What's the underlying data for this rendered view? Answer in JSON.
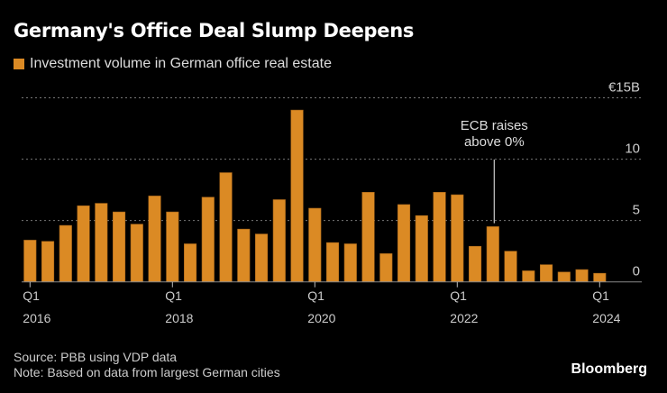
{
  "title": "Germany's Office Deal Slump Deepens",
  "legend": "Investment volume in German office real estate",
  "source": "Source: PBB using VDP data",
  "note": "Note: Based on data from largest German cities",
  "brand": "Bloomberg",
  "chart_data": {
    "type": "bar",
    "title": "Germany's Office Deal Slump Deepens",
    "series": [
      {
        "name": "Investment volume in German office real estate",
        "color": "#db8a24",
        "values": [
          3.4,
          3.3,
          4.6,
          6.2,
          6.4,
          5.7,
          4.7,
          7.0,
          5.7,
          3.1,
          6.9,
          8.9,
          4.3,
          3.9,
          6.7,
          14.0,
          6.0,
          3.2,
          3.1,
          7.3,
          2.3,
          6.3,
          5.4,
          7.3,
          7.1,
          2.9,
          4.5,
          2.5,
          0.9,
          1.4,
          0.8,
          1.0,
          0.7
        ]
      }
    ],
    "categories": [
      "Q1 2016",
      "Q2 2016",
      "Q3 2016",
      "Q4 2016",
      "Q1 2017",
      "Q2 2017",
      "Q3 2017",
      "Q4 2017",
      "Q1 2018",
      "Q2 2018",
      "Q3 2018",
      "Q4 2018",
      "Q1 2019",
      "Q2 2019",
      "Q3 2019",
      "Q4 2019",
      "Q1 2020",
      "Q2 2020",
      "Q3 2020",
      "Q4 2020",
      "Q1 2021",
      "Q2 2021",
      "Q3 2021",
      "Q4 2021",
      "Q1 2022",
      "Q2 2022",
      "Q3 2022",
      "Q4 2022",
      "Q1 2023",
      "Q2 2023",
      "Q3 2023",
      "Q4 2023",
      "Q1 2024"
    ],
    "x_ticks": [
      {
        "index": 0,
        "q": "Q1",
        "year": "2016"
      },
      {
        "index": 8,
        "q": "Q1",
        "year": "2018"
      },
      {
        "index": 16,
        "q": "Q1",
        "year": "2020"
      },
      {
        "index": 24,
        "q": "Q1",
        "year": "2022"
      },
      {
        "index": 32,
        "q": "Q1",
        "year": "2024"
      }
    ],
    "y_ticks": [
      {
        "value": 0,
        "label": "0"
      },
      {
        "value": 5,
        "label": "5"
      },
      {
        "value": 10,
        "label": "10"
      },
      {
        "value": 15,
        "label": "€15B"
      }
    ],
    "ylim": [
      0,
      15
    ],
    "grid": true,
    "annotation": {
      "index": 26,
      "value": 5,
      "lines": [
        "ECB raises",
        "above 0%"
      ]
    }
  }
}
